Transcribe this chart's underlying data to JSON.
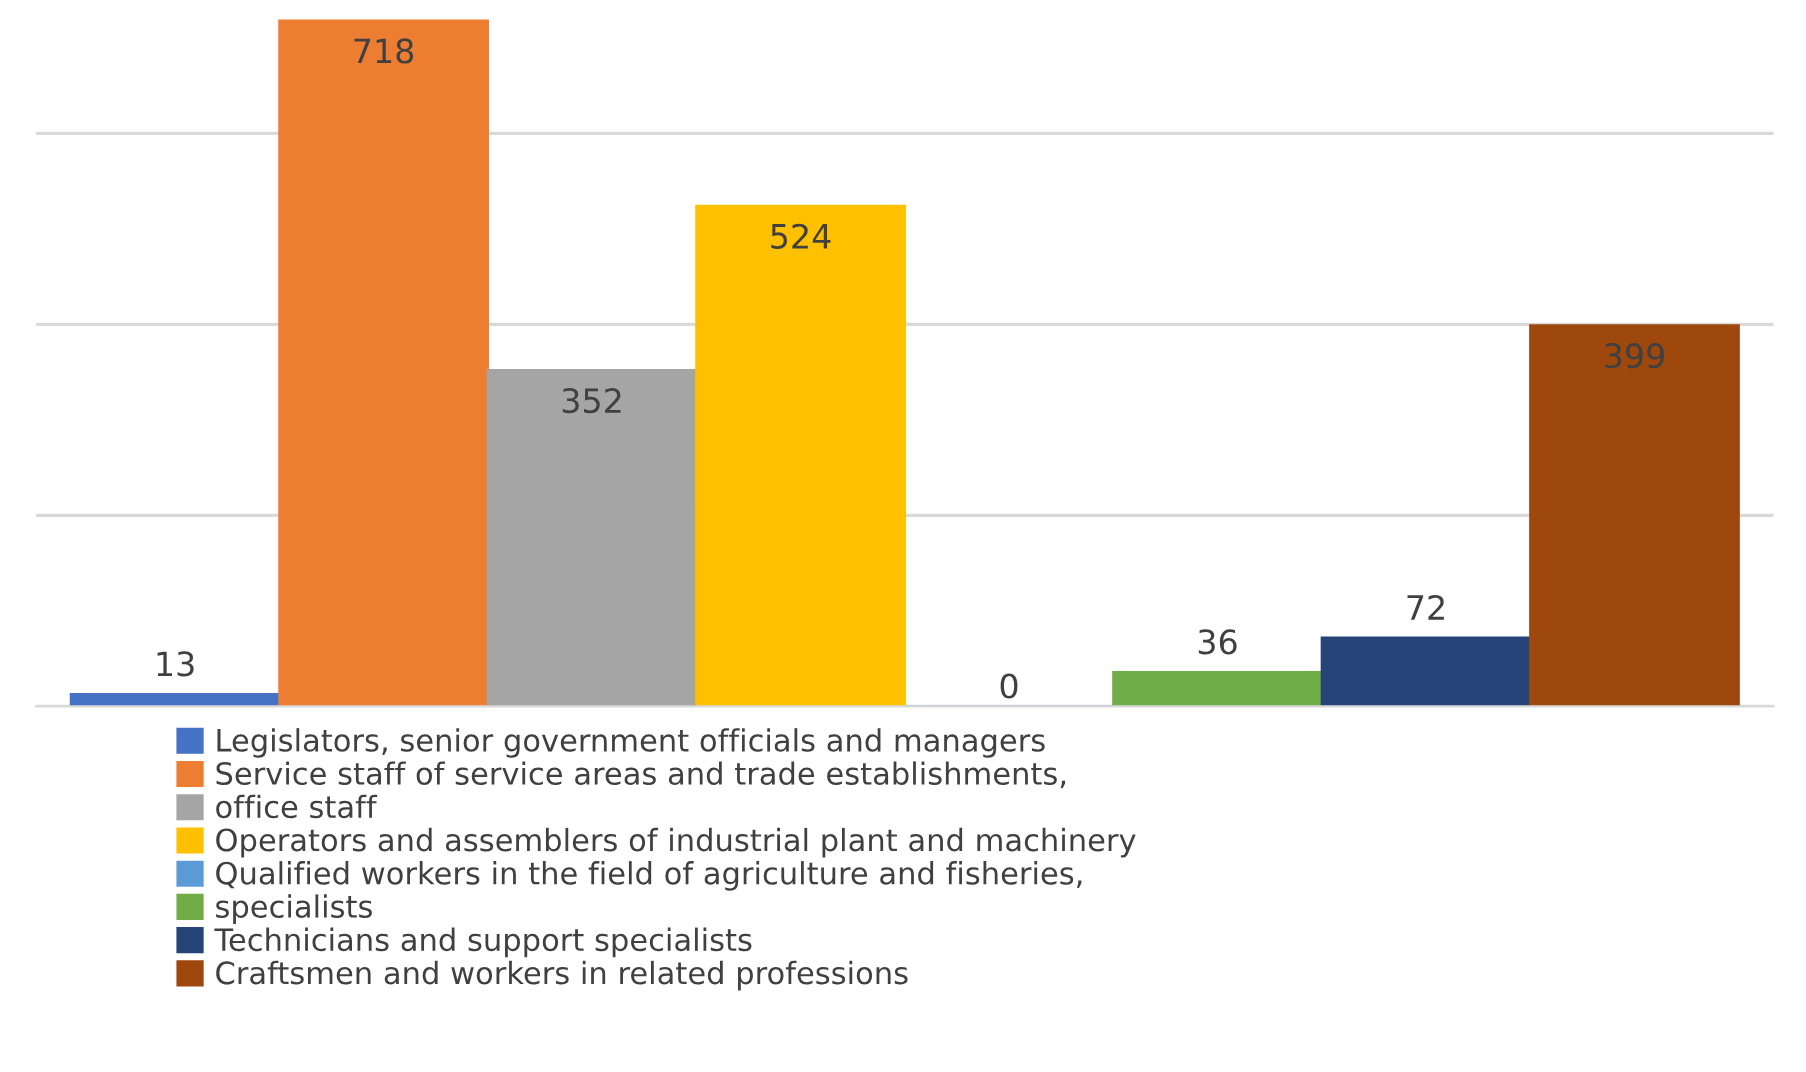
{
  "chart_data": {
    "type": "bar",
    "categories": [
      null
    ],
    "series": [
      {
        "name": "Legislators, senior government officials and managers",
        "color": "#4472c4",
        "values": [
          13
        ]
      },
      {
        "name": "Service staff of service areas and trade establishments,",
        "color": "#ed7d31",
        "values": [
          718
        ]
      },
      {
        "name": "office staff",
        "color": "#a5a5a5",
        "values": [
          352
        ]
      },
      {
        "name": "Operators and assemblers of industrial plant and machinery",
        "color": "#ffc000",
        "values": [
          524
        ]
      },
      {
        "name": "Qualified workers in the field of agriculture and fisheries,",
        "color": "#5b9bd5",
        "values": [
          0
        ]
      },
      {
        "name": "specialists",
        "color": "#70ad47",
        "values": [
          36
        ]
      },
      {
        "name": "Technicians and support specialists",
        "color": "#264478",
        "values": [
          72
        ]
      },
      {
        "name": "Craftsmen and workers in related professions",
        "color": "#9e480e",
        "values": [
          399
        ]
      }
    ],
    "yticks": [
      {
        "value": 0,
        "label": null
      },
      {
        "value": 200,
        "label": null
      },
      {
        "value": 400,
        "label": null
      },
      {
        "value": 600,
        "label": null
      }
    ],
    "grid": "y",
    "legend": "bottom",
    "data_labels": true
  }
}
